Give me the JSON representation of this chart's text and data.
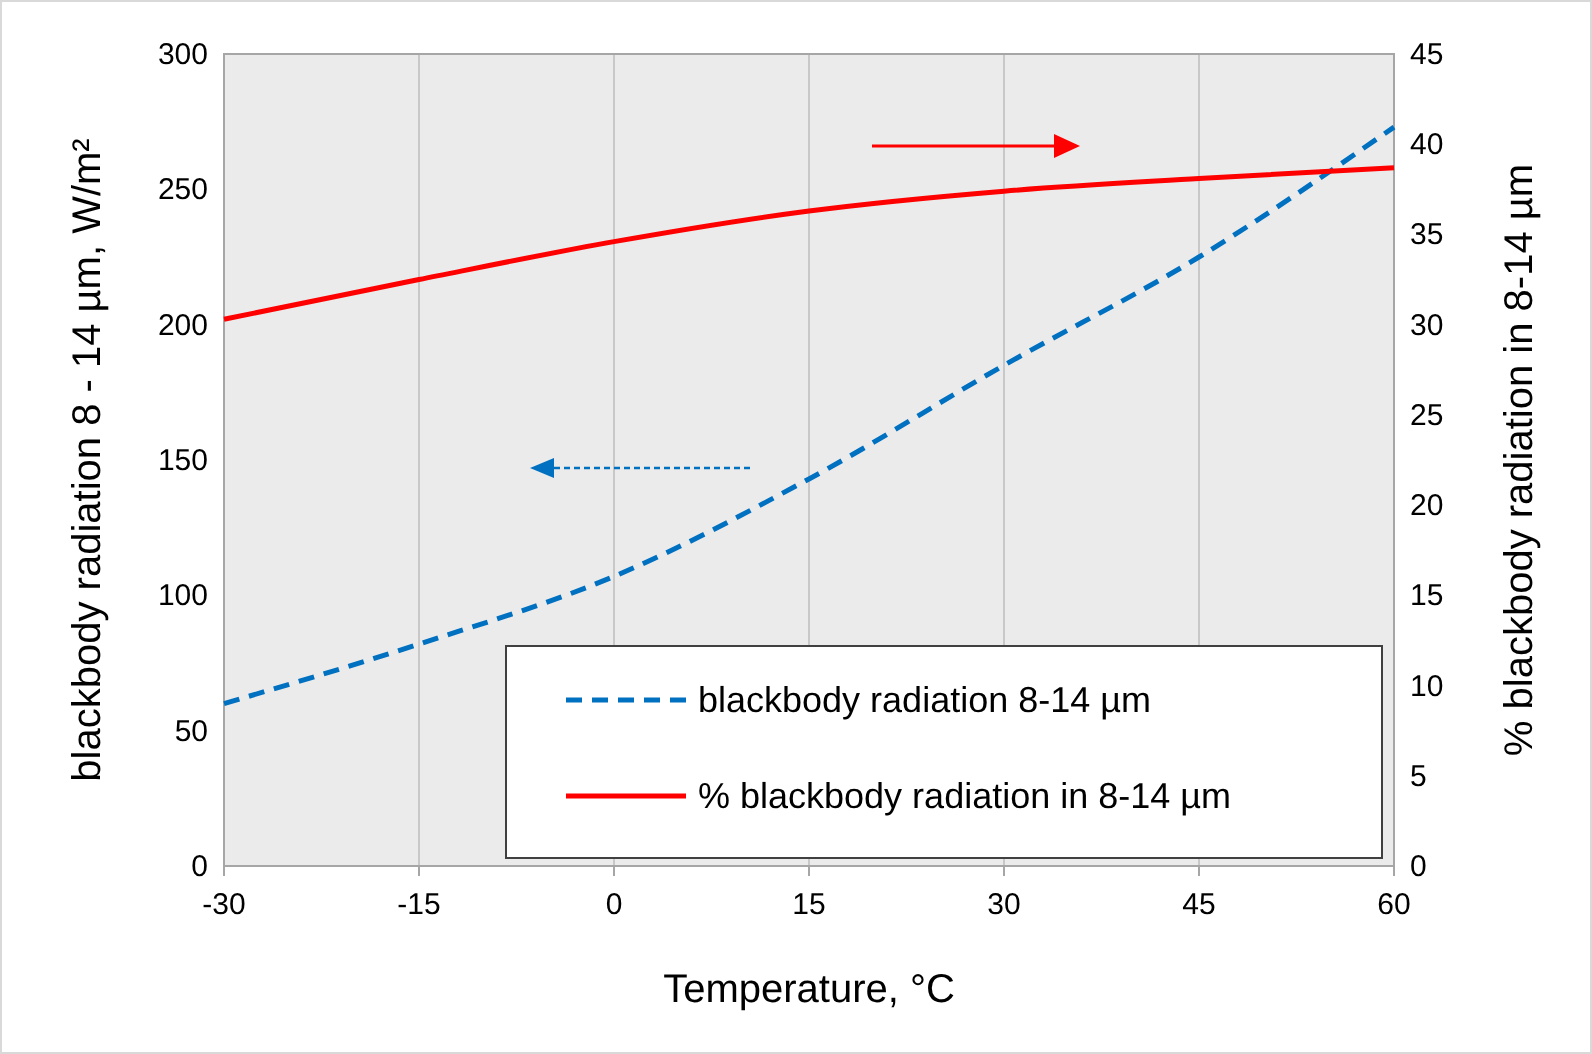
{
  "chart_data": {
    "type": "line",
    "xlabel": "Temperature, °C",
    "ylabel": "blackbody radiation 8 - 14 µm, W/m²",
    "y2label": "% blackbody radiation in 8-14 µm",
    "x": [
      -30,
      -15,
      0,
      15,
      30,
      45,
      60
    ],
    "series": [
      {
        "name": "blackbody radiation 8-14 µm",
        "color": "#0070c0",
        "line_style": "dashed",
        "values": [
          60,
          82,
          107,
          143,
          185,
          225,
          273
        ]
      },
      {
        "name": "% blackbody radiation in 8-14 µm",
        "color": "#ff0000",
        "line_style": "solid",
        "axis": "y2",
        "values": [
          30.3,
          32.5,
          34.6,
          36.3,
          37.4,
          38.1,
          38.7
        ]
      }
    ],
    "xlim": [
      -30,
      60
    ],
    "xticks": [
      -30,
      -15,
      0,
      15,
      30,
      45,
      60
    ],
    "ylim": [
      0,
      300
    ],
    "yticks": [
      0,
      50,
      100,
      150,
      200,
      250,
      300
    ],
    "y2lim": [
      0,
      45
    ],
    "y2ticks": [
      0,
      5,
      10,
      15,
      20,
      25,
      30,
      35,
      40,
      45
    ],
    "grid": "x",
    "legend": "bottom right",
    "marker": "none"
  }
}
